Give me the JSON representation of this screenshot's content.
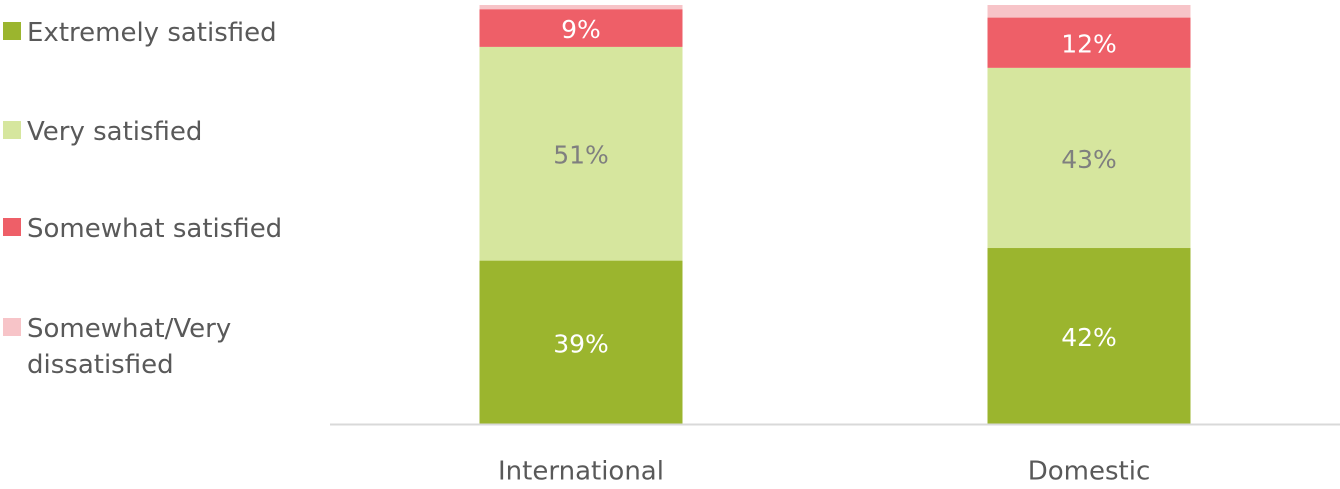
{
  "chart_data": {
    "type": "stacked_bar",
    "categories": [
      "International",
      "Domestic"
    ],
    "series": [
      {
        "name": "Extremely satisfied",
        "color": "#9bb52e",
        "values": [
          39,
          42
        ],
        "value_labels": [
          "39%",
          "42%"
        ]
      },
      {
        "name": "Very satisfied",
        "color": "#d6e69e",
        "values": [
          51,
          43
        ],
        "value_labels": [
          "51%",
          "43%"
        ]
      },
      {
        "name": "Somewhat satisfied",
        "color": "#ee5f68",
        "values": [
          9,
          12
        ],
        "value_labels": [
          "9%",
          "12%"
        ]
      },
      {
        "name": "Somewhat/Very dissatisfied",
        "color": "#f7c4c8",
        "values": [
          1,
          3
        ]
      }
    ],
    "ylim": [
      0,
      100
    ]
  }
}
